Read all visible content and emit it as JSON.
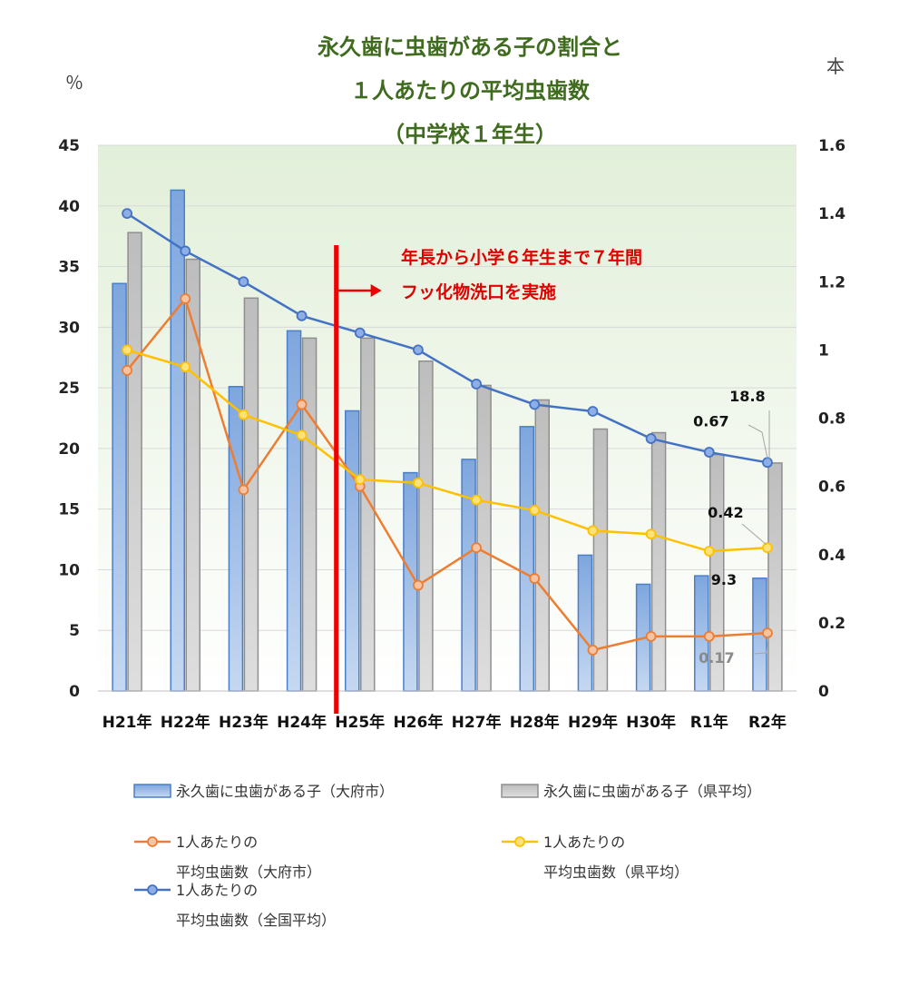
{
  "title_lines": [
    "永久歯に虫歯がある子の割合と",
    "１人あたりの平均虫歯数",
    "（中学校１年生）"
  ],
  "left_unit": "％",
  "right_unit": "本",
  "annotation": {
    "lines": [
      "年長から小学６年生まで７年間",
      "フッ化物洗口を実施"
    ],
    "color": "#e00000",
    "category": "H25年"
  },
  "colors": {
    "title": "#3f6b1e",
    "bar_city": "#8fb4e3",
    "bar_pref": "#c8c8c8",
    "line_city": "#ed7d31",
    "line_pref": "#ffc000",
    "line_nation": "#4472c4",
    "plot_bg_top": "#e2efd9",
    "grid": "#d9d9d9"
  },
  "chart_data": {
    "type": "bar",
    "categories": [
      "H21年",
      "H22年",
      "H23年",
      "H24年",
      "H25年",
      "H26年",
      "H27年",
      "H28年",
      "H29年",
      "H30年",
      "R1年",
      "R2年"
    ],
    "y_left": {
      "min": 0,
      "max": 45,
      "ticks": [
        "0",
        "5",
        "10",
        "15",
        "20",
        "25",
        "30",
        "35",
        "40",
        "45"
      ]
    },
    "y_right": {
      "min": 0,
      "max": 1.6,
      "ticks": [
        "0",
        "0.2",
        "0.4",
        "0.6",
        "0.8",
        "1",
        "1.2",
        "1.4",
        "1.6"
      ]
    },
    "series": [
      {
        "name": "永久歯に虫歯がある子（大府市）",
        "kind": "bar",
        "axis": "left",
        "values": [
          33.6,
          41.3,
          25.1,
          29.7,
          23.1,
          18.0,
          19.1,
          21.8,
          11.2,
          8.8,
          9.5,
          9.3
        ]
      },
      {
        "name": "永久歯に虫歯がある子（県平均）",
        "kind": "bar",
        "axis": "left",
        "values": [
          37.8,
          35.6,
          32.4,
          29.1,
          29.1,
          27.2,
          25.2,
          24.0,
          21.6,
          21.3,
          19.5,
          18.8
        ]
      },
      {
        "name": "1人あたりの平均虫歯数（大府市）",
        "legend_lines": [
          "1人あたりの",
          "平均虫歯数（大府市）"
        ],
        "kind": "line",
        "axis": "right",
        "values": [
          0.94,
          1.15,
          0.59,
          0.84,
          0.6,
          0.31,
          0.42,
          0.33,
          0.12,
          0.16,
          0.16,
          0.17
        ]
      },
      {
        "name": "1人あたりの平均虫歯数（県平均）",
        "legend_lines": [
          "1人あたりの",
          "平均虫歯数（県平均）"
        ],
        "kind": "line",
        "axis": "right",
        "values": [
          1.0,
          0.95,
          0.81,
          0.75,
          0.62,
          0.61,
          0.56,
          0.53,
          0.47,
          0.46,
          0.41,
          0.42
        ]
      },
      {
        "name": "1人あたりの平均虫歯数（全国平均）",
        "legend_lines": [
          "1人あたりの",
          "平均虫歯数（全国平均）"
        ],
        "kind": "line",
        "axis": "right",
        "values": [
          1.4,
          1.29,
          1.2,
          1.1,
          1.05,
          1.0,
          0.9,
          0.84,
          0.82,
          0.74,
          0.7,
          0.67
        ]
      }
    ],
    "data_labels": [
      {
        "text": "18.8",
        "series": 1,
        "index": 11
      },
      {
        "text": "0.67",
        "series": 4,
        "index": 11
      },
      {
        "text": "0.42",
        "series": 3,
        "index": 11
      },
      {
        "text": "9.3",
        "series": 0,
        "index": 11
      },
      {
        "text": "0.17",
        "series": 2,
        "index": 11
      }
    ],
    "grid": true,
    "legend_position": "bottom"
  }
}
